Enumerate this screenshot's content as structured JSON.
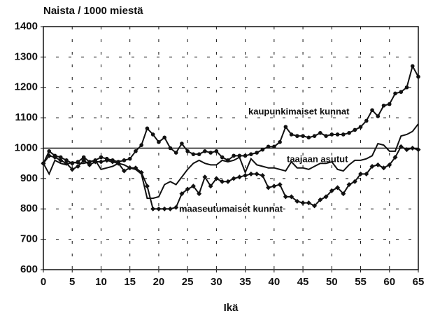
{
  "chart_data": {
    "type": "line",
    "y_label": "Naista / 1000 miestä",
    "x_label": "Ikä",
    "x": [
      0,
      1,
      2,
      3,
      4,
      5,
      6,
      7,
      8,
      9,
      10,
      11,
      12,
      13,
      14,
      15,
      16,
      17,
      18,
      19,
      20,
      21,
      22,
      23,
      24,
      25,
      26,
      27,
      28,
      29,
      30,
      31,
      32,
      33,
      34,
      35,
      36,
      37,
      38,
      39,
      40,
      41,
      42,
      43,
      44,
      45,
      46,
      47,
      48,
      49,
      50,
      51,
      52,
      53,
      54,
      55,
      56,
      57,
      58,
      59,
      60,
      61,
      62,
      63,
      64,
      65
    ],
    "series": [
      {
        "name": "kaupunkimaiset kunnat",
        "color": "#111111",
        "marker": "circle",
        "values": [
          950,
          990,
          975,
          970,
          960,
          950,
          955,
          970,
          955,
          960,
          970,
          965,
          960,
          955,
          960,
          965,
          990,
          1010,
          1065,
          1045,
          1020,
          1035,
          1000,
          985,
          1015,
          990,
          980,
          980,
          990,
          985,
          990,
          970,
          960,
          975,
          975,
          975,
          980,
          985,
          995,
          1005,
          1005,
          1020,
          1070,
          1045,
          1040,
          1040,
          1035,
          1040,
          1050,
          1040,
          1045,
          1045,
          1045,
          1050,
          1060,
          1070,
          1090,
          1125,
          1105,
          1140,
          1145,
          1180,
          1185,
          1200,
          1270,
          1235
        ]
      },
      {
        "name": "taajaan asutut",
        "color": "#111111",
        "marker": "none",
        "values": [
          950,
          915,
          960,
          950,
          945,
          955,
          950,
          950,
          955,
          960,
          930,
          935,
          940,
          950,
          945,
          935,
          930,
          915,
          835,
          835,
          840,
          880,
          890,
          880,
          905,
          930,
          950,
          960,
          950,
          945,
          945,
          960,
          955,
          960,
          970,
          920,
          965,
          945,
          940,
          935,
          935,
          930,
          925,
          955,
          935,
          935,
          930,
          940,
          950,
          950,
          955,
          930,
          925,
          945,
          960,
          960,
          965,
          975,
          1015,
          1010,
          990,
          990,
          1040,
          1045,
          1055,
          1080
        ]
      },
      {
        "name": "maaseutumaiset kunnat",
        "color": "#111111",
        "marker": "diamond",
        "values": [
          950,
          975,
          970,
          960,
          950,
          930,
          940,
          960,
          945,
          955,
          955,
          960,
          955,
          950,
          925,
          935,
          935,
          920,
          875,
          800,
          800,
          800,
          800,
          805,
          850,
          865,
          875,
          850,
          905,
          875,
          900,
          890,
          890,
          900,
          905,
          910,
          915,
          915,
          910,
          870,
          875,
          880,
          840,
          840,
          825,
          820,
          820,
          810,
          830,
          840,
          860,
          870,
          850,
          880,
          890,
          915,
          915,
          940,
          945,
          935,
          945,
          970,
          1005,
          995,
          1000,
          995
        ]
      }
    ],
    "reference_line": 1000,
    "xlim": [
      0,
      65
    ],
    "xticks": [
      0,
      5,
      10,
      15,
      20,
      25,
      30,
      35,
      40,
      45,
      50,
      55,
      60,
      65
    ],
    "ylim": [
      600,
      1400
    ],
    "yticks": [
      600,
      700,
      800,
      900,
      1000,
      1100,
      1200,
      1300,
      1400
    ],
    "grid": true
  }
}
